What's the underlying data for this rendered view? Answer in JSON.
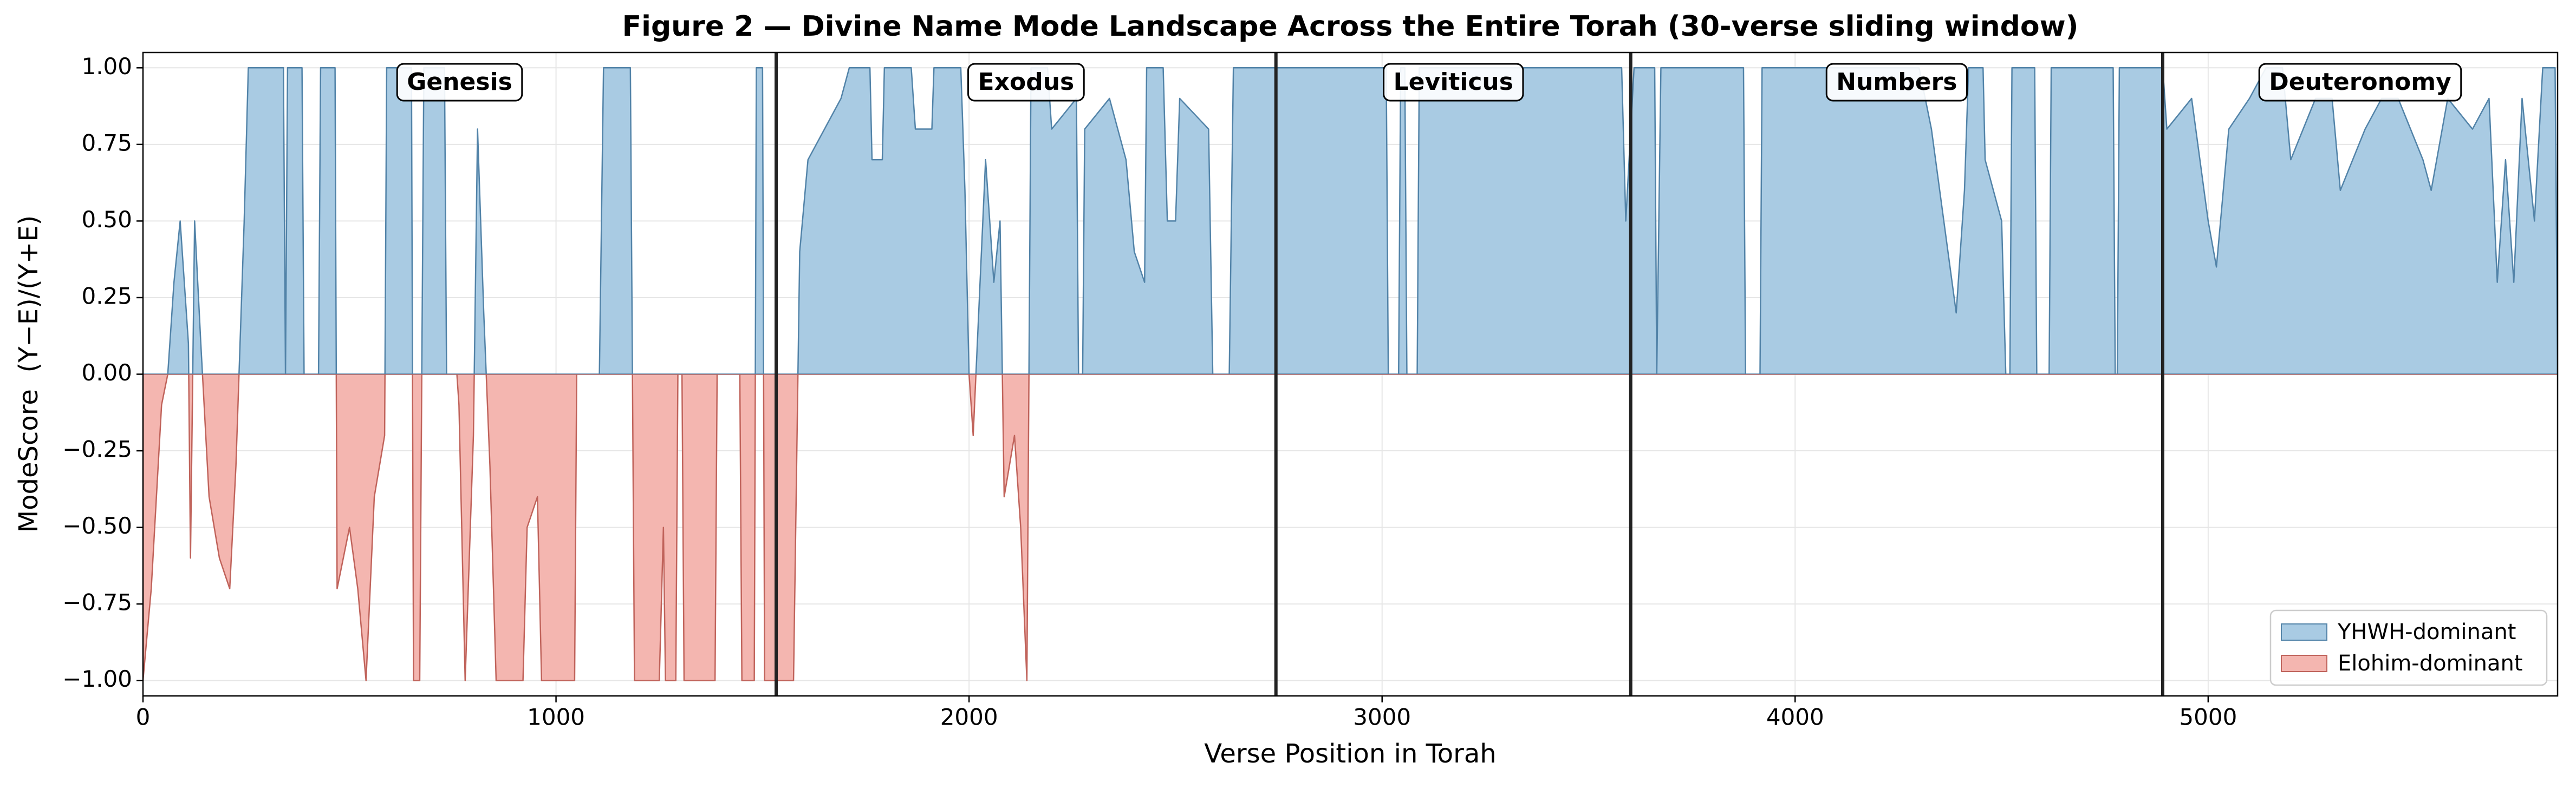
{
  "chart_data": {
    "type": "diverging-area",
    "title": "Figure 2 — Divine Name Mode Landscape Across the Entire Torah (30-verse sliding window)",
    "xlabel": "Verse Position in Torah",
    "ylabel": "ModeScore  (Y−E)/(Y+E)",
    "x": [
      0,
      20,
      45,
      60,
      75,
      90,
      100,
      110,
      115,
      125,
      140,
      160,
      185,
      210,
      225,
      245,
      255,
      340,
      345,
      350,
      385,
      390,
      425,
      430,
      465,
      470,
      500,
      520,
      540,
      560,
      585,
      590,
      650,
      655,
      670,
      680,
      730,
      735,
      760,
      765,
      780,
      800,
      810,
      825,
      840,
      855,
      920,
      930,
      955,
      965,
      1045,
      1050,
      1105,
      1115,
      1180,
      1185,
      1190,
      1250,
      1260,
      1265,
      1290,
      1295,
      1305,
      1310,
      1385,
      1390,
      1445,
      1450,
      1480,
      1485,
      1500,
      1505,
      1575,
      1590,
      1610,
      1650,
      1690,
      1710,
      1760,
      1765,
      1790,
      1795,
      1860,
      1870,
      1910,
      1915,
      1980,
      1990,
      2000,
      2010,
      2020,
      2040,
      2060,
      2075,
      2085,
      2110,
      2125,
      2140,
      2150,
      2190,
      2200,
      2260,
      2265,
      2275,
      2280,
      2340,
      2380,
      2400,
      2425,
      2430,
      2470,
      2480,
      2500,
      2510,
      2580,
      2590,
      2630,
      2640,
      3010,
      3015,
      3040,
      3045,
      3055,
      3060,
      3085,
      3090,
      3580,
      3590,
      3610,
      3660,
      3665,
      3675,
      3875,
      3880,
      3915,
      3920,
      4300,
      4330,
      4370,
      4390,
      4410,
      4420,
      4455,
      4460,
      4500,
      4510,
      4520,
      4525,
      4580,
      4585,
      4615,
      4620,
      4770,
      4775,
      4780,
      4785,
      4890,
      4900,
      4960,
      5000,
      5020,
      5050,
      5100,
      5140,
      5180,
      5200,
      5260,
      5300,
      5320,
      5380,
      5420,
      5460,
      5520,
      5540,
      5580,
      5640,
      5680,
      5700,
      5720,
      5740,
      5760,
      5790,
      5810,
      5840,
      5846
    ],
    "values": [
      -1,
      -0.7,
      -0.1,
      0,
      0.3,
      0.5,
      0.3,
      0.1,
      -0.6,
      0.5,
      0.1,
      -0.4,
      -0.6,
      -0.7,
      -0.3,
      0.5,
      1,
      1,
      0,
      1,
      1,
      0,
      0,
      1,
      1,
      -0.7,
      -0.5,
      -0.7,
      -1,
      -0.4,
      -0.2,
      1,
      1,
      -1,
      -1,
      1,
      1,
      0,
      0,
      -0.1,
      -1,
      -0.2,
      0.8,
      0.2,
      -0.3,
      -1,
      -1,
      -0.5,
      -0.4,
      -1,
      -1,
      0,
      0,
      1,
      1,
      0,
      -1,
      -1,
      -0.5,
      -1,
      -1,
      0,
      0,
      -1,
      -1,
      0,
      0,
      -1,
      -1,
      1,
      1,
      -1,
      -1,
      0.4,
      0.7,
      0.8,
      0.9,
      1,
      1,
      0.7,
      0.7,
      1,
      1,
      0.8,
      0.8,
      1,
      1,
      0.6,
      0,
      -0.2,
      0.1,
      0.7,
      0.3,
      0.5,
      -0.4,
      -0.2,
      -0.5,
      -1,
      1,
      1,
      0.8,
      0.9,
      0,
      0,
      0.8,
      0.9,
      0.7,
      0.4,
      0.3,
      1,
      1,
      0.5,
      0.5,
      0.9,
      0.8,
      0,
      0,
      1,
      1,
      0,
      0,
      1,
      1,
      0,
      0,
      1,
      1,
      0.5,
      1,
      1,
      0,
      1,
      1,
      0,
      0,
      1,
      1,
      0.8,
      0.4,
      0.2,
      0.6,
      1,
      1,
      0.7,
      0.5,
      0,
      0,
      1,
      1,
      0,
      0,
      1,
      1,
      0,
      0,
      1,
      1,
      0.8,
      0.9,
      0.5,
      0.35,
      0.8,
      0.9,
      1,
      1,
      0.7,
      0.9,
      0.9,
      0.6,
      0.8,
      0.9,
      0.9,
      0.7,
      0.6,
      0.9,
      0.8,
      0.9,
      0.3,
      0.7,
      0.3,
      0.9,
      0.5,
      1,
      1,
      0
    ],
    "series": [
      {
        "name": "YHWH-dominant",
        "color": "#a9cbe3",
        "edgecolor": "#5283a8"
      },
      {
        "name": "Elohim-dominant",
        "color": "#f4b6b0",
        "edgecolor": "#c0635b"
      }
    ],
    "boundaries": [
      1533,
      2743,
      3602,
      4890
    ],
    "books": [
      "Genesis",
      "Exodus",
      "Leviticus",
      "Numbers",
      "Deuteronomy"
    ],
    "xlim": [
      0,
      5846
    ],
    "ylim": [
      -1.05,
      1.05
    ],
    "xticks": [
      0,
      1000,
      2000,
      3000,
      4000,
      5000
    ],
    "yticks": [
      {
        "value": -1,
        "label": "−1.00"
      },
      {
        "value": -0.75,
        "label": "−0.75"
      },
      {
        "value": -0.5,
        "label": "−0.50"
      },
      {
        "value": -0.25,
        "label": "−0.25"
      },
      {
        "value": 0,
        "label": "0.00"
      },
      {
        "value": 0.25,
        "label": "0.25"
      },
      {
        "value": 0.5,
        "label": "0.50"
      },
      {
        "value": 0.75,
        "label": "0.75"
      },
      {
        "value": 1,
        "label": "1.00"
      }
    ],
    "grid": true,
    "legend_loc": "lower right"
  }
}
